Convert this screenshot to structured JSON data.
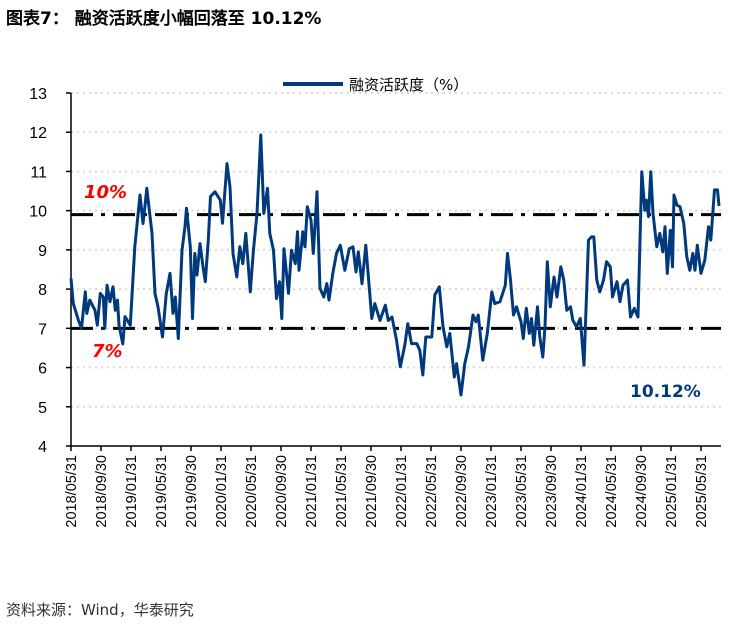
{
  "title": "图表7：  融资活跃度小幅回落至 10.12%",
  "source": "资料来源：Wind，华泰研究",
  "colors": {
    "series": "#003a7d",
    "annotation_red": "#ff0000",
    "reference": "#000000",
    "grid": "#d9d9d9"
  },
  "chart_data": {
    "type": "line",
    "title": "融资活跃度小幅回落至 10.12%",
    "xlabel": "",
    "ylabel": "",
    "x_unit": "months since 2018/05/31",
    "ylim": [
      4,
      13
    ],
    "yticks": [
      4,
      5,
      6,
      7,
      8,
      9,
      10,
      11,
      12,
      13
    ],
    "xlim": [
      0,
      86.6
    ],
    "xtick_labels": [
      "2018/05/31",
      "2018/09/30",
      "2019/01/31",
      "2019/05/31",
      "2019/09/30",
      "2020/01/31",
      "2020/05/31",
      "2020/09/30",
      "2021/01/31",
      "2021/05/31",
      "2021/09/30",
      "2022/01/31",
      "2022/05/31",
      "2022/09/30",
      "2023/01/31",
      "2023/05/31",
      "2023/09/30",
      "2024/01/31",
      "2024/05/31",
      "2024/09/30",
      "2025/01/31",
      "2025/05/31"
    ],
    "grid": "horizontal dotted",
    "legend": {
      "position": "top-center",
      "label": "融资活跃度（%）"
    },
    "reference_lines": [
      {
        "value": 9.9,
        "label": "10%"
      },
      {
        "value": 7.0,
        "label": "7%"
      }
    ],
    "annotations": {
      "last_value": "10.12%"
    },
    "series": [
      {
        "name": "融资活跃度（%）",
        "points": [
          [
            0,
            8.27
          ],
          [
            0.3,
            7.63
          ],
          [
            1.0,
            7.2
          ],
          [
            1.4,
            7.0
          ],
          [
            1.9,
            7.93
          ],
          [
            2.1,
            7.38
          ],
          [
            2.5,
            7.72
          ],
          [
            3.2,
            7.46
          ],
          [
            3.5,
            7.08
          ],
          [
            3.9,
            7.89
          ],
          [
            4.3,
            7.8
          ],
          [
            4.5,
            7.0
          ],
          [
            4.8,
            8.1
          ],
          [
            5.2,
            7.68
          ],
          [
            5.6,
            8.06
          ],
          [
            5.9,
            7.46
          ],
          [
            6.2,
            7.72
          ],
          [
            6.4,
            7.08
          ],
          [
            6.9,
            6.6
          ],
          [
            7.2,
            7.3
          ],
          [
            7.9,
            7.08
          ],
          [
            8.5,
            9.08
          ],
          [
            9.2,
            10.4
          ],
          [
            9.6,
            9.67
          ],
          [
            9.9,
            10.2
          ],
          [
            10.1,
            10.57
          ],
          [
            10.8,
            9.42
          ],
          [
            11.2,
            7.89
          ],
          [
            11.6,
            7.55
          ],
          [
            12.2,
            6.78
          ],
          [
            12.7,
            7.89
          ],
          [
            13.2,
            8.4
          ],
          [
            13.6,
            7.38
          ],
          [
            13.9,
            7.8
          ],
          [
            14.3,
            6.74
          ],
          [
            14.8,
            8.99
          ],
          [
            15.2,
            9.59
          ],
          [
            15.4,
            10.06
          ],
          [
            15.9,
            9.08
          ],
          [
            16.2,
            7.25
          ],
          [
            16.5,
            8.91
          ],
          [
            16.8,
            8.36
          ],
          [
            17.2,
            9.16
          ],
          [
            17.6,
            8.57
          ],
          [
            17.9,
            8.19
          ],
          [
            18.3,
            9.25
          ],
          [
            18.6,
            10.36
          ],
          [
            19.2,
            10.48
          ],
          [
            19.9,
            10.27
          ],
          [
            20.2,
            9.68
          ],
          [
            20.8,
            11.2
          ],
          [
            21.2,
            10.6
          ],
          [
            21.6,
            8.91
          ],
          [
            22.1,
            8.31
          ],
          [
            22.5,
            9.08
          ],
          [
            22.9,
            8.65
          ],
          [
            23.3,
            9.42
          ],
          [
            23.9,
            7.93
          ],
          [
            24.3,
            8.95
          ],
          [
            24.8,
            9.93
          ],
          [
            25.3,
            11.93
          ],
          [
            25.7,
            9.93
          ],
          [
            26.2,
            10.57
          ],
          [
            26.5,
            9.42
          ],
          [
            27.0,
            8.99
          ],
          [
            27.4,
            7.76
          ],
          [
            27.8,
            8.19
          ],
          [
            28.1,
            7.25
          ],
          [
            28.4,
            9.03
          ],
          [
            29.0,
            7.89
          ],
          [
            29.4,
            8.99
          ],
          [
            29.9,
            8.65
          ],
          [
            30.2,
            9.46
          ],
          [
            30.4,
            8.48
          ],
          [
            30.9,
            9.46
          ],
          [
            31.2,
            9.08
          ],
          [
            31.5,
            10.1
          ],
          [
            32.0,
            9.76
          ],
          [
            32.3,
            8.91
          ],
          [
            32.8,
            10.48
          ],
          [
            33.2,
            8.02
          ],
          [
            33.7,
            7.8
          ],
          [
            34.1,
            8.14
          ],
          [
            34.4,
            7.72
          ],
          [
            34.9,
            8.4
          ],
          [
            35.4,
            8.91
          ],
          [
            35.9,
            9.12
          ],
          [
            36.5,
            8.48
          ],
          [
            37.1,
            9.03
          ],
          [
            37.6,
            9.08
          ],
          [
            38.0,
            8.44
          ],
          [
            38.3,
            8.95
          ],
          [
            38.8,
            8.14
          ],
          [
            39.3,
            9.12
          ],
          [
            40.1,
            7.25
          ],
          [
            40.5,
            7.63
          ],
          [
            41.2,
            7.2
          ],
          [
            41.9,
            7.59
          ],
          [
            42.3,
            7.2
          ],
          [
            42.8,
            7.29
          ],
          [
            43.4,
            6.7
          ],
          [
            43.9,
            6.02
          ],
          [
            44.5,
            6.57
          ],
          [
            44.9,
            7.12
          ],
          [
            45.4,
            6.61
          ],
          [
            46.1,
            6.61
          ],
          [
            46.5,
            6.44
          ],
          [
            46.9,
            5.81
          ],
          [
            47.3,
            6.78
          ],
          [
            48.1,
            6.78
          ],
          [
            48.5,
            7.85
          ],
          [
            49.1,
            8.06
          ],
          [
            49.6,
            7.04
          ],
          [
            50.1,
            6.53
          ],
          [
            50.5,
            6.87
          ],
          [
            51.1,
            5.76
          ],
          [
            51.4,
            6.1
          ],
          [
            52.0,
            5.3
          ],
          [
            52.5,
            6.1
          ],
          [
            53.0,
            6.53
          ],
          [
            53.6,
            7.34
          ],
          [
            54.0,
            7.17
          ],
          [
            54.3,
            7.34
          ],
          [
            54.9,
            6.19
          ],
          [
            55.5,
            6.87
          ],
          [
            56.1,
            7.93
          ],
          [
            56.5,
            7.63
          ],
          [
            57.2,
            7.68
          ],
          [
            57.9,
            8.1
          ],
          [
            58.2,
            8.91
          ],
          [
            58.6,
            8.23
          ],
          [
            59.0,
            7.34
          ],
          [
            59.4,
            7.55
          ],
          [
            60.0,
            7.17
          ],
          [
            60.3,
            6.74
          ],
          [
            60.7,
            7.51
          ],
          [
            61.1,
            6.87
          ],
          [
            61.4,
            7.25
          ],
          [
            61.7,
            6.57
          ],
          [
            62.2,
            7.55
          ],
          [
            62.5,
            6.78
          ],
          [
            62.9,
            6.27
          ],
          [
            63.2,
            7.04
          ],
          [
            63.5,
            8.7
          ],
          [
            63.9,
            7.55
          ],
          [
            64.4,
            8.31
          ],
          [
            64.8,
            7.8
          ],
          [
            65.3,
            8.57
          ],
          [
            65.7,
            8.23
          ],
          [
            66.1,
            7.46
          ],
          [
            66.6,
            7.55
          ],
          [
            66.9,
            7.21
          ],
          [
            67.4,
            7.04
          ],
          [
            67.9,
            7.25
          ],
          [
            68.4,
            6.06
          ],
          [
            69.0,
            9.25
          ],
          [
            69.4,
            9.33
          ],
          [
            69.7,
            9.33
          ],
          [
            70.1,
            8.23
          ],
          [
            70.5,
            7.93
          ],
          [
            71.0,
            8.23
          ],
          [
            71.4,
            8.7
          ],
          [
            71.9,
            8.57
          ],
          [
            72.2,
            7.8
          ],
          [
            72.8,
            8.19
          ],
          [
            73.2,
            7.68
          ],
          [
            73.6,
            8.1
          ],
          [
            74.2,
            8.23
          ],
          [
            74.6,
            7.29
          ],
          [
            75.1,
            7.51
          ],
          [
            75.6,
            7.29
          ],
          [
            76.1,
            10.99
          ],
          [
            76.5,
            10.01
          ],
          [
            76.7,
            10.27
          ],
          [
            77.0,
            9.85
          ],
          [
            77.3,
            10.99
          ],
          [
            77.6,
            9.93
          ],
          [
            78.1,
            9.08
          ],
          [
            78.5,
            9.42
          ],
          [
            78.9,
            8.95
          ],
          [
            79.2,
            9.59
          ],
          [
            79.5,
            8.4
          ],
          [
            79.9,
            9.5
          ],
          [
            80.2,
            8.57
          ],
          [
            80.4,
            10.4
          ],
          [
            80.8,
            10.14
          ],
          [
            81.2,
            10.1
          ],
          [
            81.7,
            9.67
          ],
          [
            82.1,
            8.82
          ],
          [
            82.5,
            8.48
          ],
          [
            82.9,
            8.91
          ],
          [
            83.2,
            8.48
          ],
          [
            83.5,
            9.12
          ],
          [
            84.0,
            8.4
          ],
          [
            84.5,
            8.74
          ],
          [
            85.0,
            9.59
          ],
          [
            85.3,
            9.25
          ],
          [
            85.8,
            10.53
          ],
          [
            86.2,
            10.53
          ],
          [
            86.4,
            10.12
          ]
        ]
      }
    ]
  }
}
